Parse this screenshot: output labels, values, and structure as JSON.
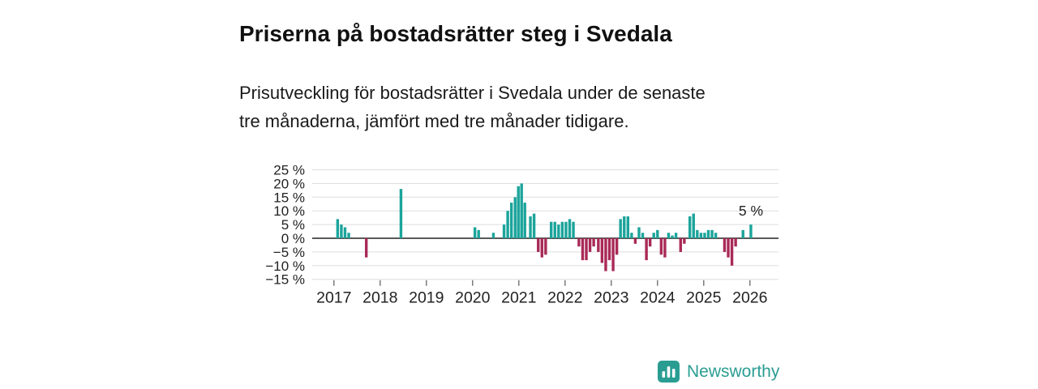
{
  "header": {
    "title": "Priserna på bostadsrätter steg i Svedala",
    "subtitle": "Prisutveckling för bostadsrätter i Svedala under de senaste tre månaderna, jämfört med tre månader tidigare."
  },
  "brand": {
    "name": "Newsworthy",
    "logo_icon": "bar-chart-icon",
    "logo_color": "#2a9d93"
  },
  "colors": {
    "positive_bar": "#1ba49b",
    "negative_bar": "#a92a57",
    "grid": "#dddddd",
    "zero_line": "#222222",
    "axis_text": "#222222",
    "tick_mark": "#666666"
  },
  "chart_data": {
    "type": "bar",
    "title": "",
    "xlabel": "",
    "ylabel": "",
    "x_domain": [
      2016.53,
      2026.6
    ],
    "ylim": [
      -17,
      27
    ],
    "y_ticks": [
      25,
      20,
      15,
      10,
      5,
      0,
      -5,
      -10,
      -15
    ],
    "y_tick_labels": [
      "25 %",
      "20 %",
      "15 %",
      "10 %",
      "5 %",
      "0 %",
      "−5 %",
      "−10 %",
      "−15 %"
    ],
    "x_ticks": [
      2017,
      2018,
      2019,
      2020,
      2021,
      2022,
      2023,
      2024,
      2025,
      2026
    ],
    "legend": "none",
    "grid": "horizontal",
    "annotation": {
      "text": "5 %",
      "x": 2026.02,
      "y": 5
    },
    "points": [
      [
        2017.08,
        7
      ],
      [
        2017.16,
        5
      ],
      [
        2017.24,
        4
      ],
      [
        2017.32,
        2
      ],
      [
        2017.7,
        -7
      ],
      [
        2018.45,
        18
      ],
      [
        2020.05,
        4
      ],
      [
        2020.13,
        3
      ],
      [
        2020.45,
        2
      ],
      [
        2020.68,
        5
      ],
      [
        2020.76,
        10
      ],
      [
        2020.84,
        13
      ],
      [
        2020.92,
        15
      ],
      [
        2020.99,
        19
      ],
      [
        2021.06,
        20
      ],
      [
        2021.13,
        13
      ],
      [
        2021.25,
        8
      ],
      [
        2021.33,
        9
      ],
      [
        2021.42,
        -5
      ],
      [
        2021.5,
        -7
      ],
      [
        2021.58,
        -6
      ],
      [
        2021.7,
        6
      ],
      [
        2021.78,
        6
      ],
      [
        2021.86,
        5
      ],
      [
        2021.94,
        6
      ],
      [
        2022.02,
        6
      ],
      [
        2022.1,
        7
      ],
      [
        2022.18,
        6
      ],
      [
        2022.3,
        -3
      ],
      [
        2022.38,
        -8
      ],
      [
        2022.46,
        -8
      ],
      [
        2022.54,
        -5
      ],
      [
        2022.62,
        -3
      ],
      [
        2022.72,
        -5
      ],
      [
        2022.8,
        -9
      ],
      [
        2022.88,
        -12
      ],
      [
        2022.96,
        -8
      ],
      [
        2023.04,
        -12
      ],
      [
        2023.12,
        -6
      ],
      [
        2023.2,
        7
      ],
      [
        2023.28,
        8
      ],
      [
        2023.36,
        8
      ],
      [
        2023.44,
        2
      ],
      [
        2023.52,
        -2
      ],
      [
        2023.6,
        4
      ],
      [
        2023.68,
        2
      ],
      [
        2023.76,
        -8
      ],
      [
        2023.84,
        -3
      ],
      [
        2023.92,
        2
      ],
      [
        2024.0,
        3
      ],
      [
        2024.08,
        -6
      ],
      [
        2024.16,
        -7
      ],
      [
        2024.24,
        2
      ],
      [
        2024.32,
        1
      ],
      [
        2024.4,
        2
      ],
      [
        2024.5,
        -5
      ],
      [
        2024.58,
        -2
      ],
      [
        2024.7,
        8
      ],
      [
        2024.78,
        9
      ],
      [
        2024.86,
        3
      ],
      [
        2024.94,
        2
      ],
      [
        2025.02,
        2
      ],
      [
        2025.1,
        3
      ],
      [
        2025.18,
        3
      ],
      [
        2025.26,
        2
      ],
      [
        2025.45,
        -5
      ],
      [
        2025.53,
        -7
      ],
      [
        2025.61,
        -10
      ],
      [
        2025.69,
        -3
      ],
      [
        2025.85,
        3
      ],
      [
        2026.02,
        5
      ]
    ]
  }
}
